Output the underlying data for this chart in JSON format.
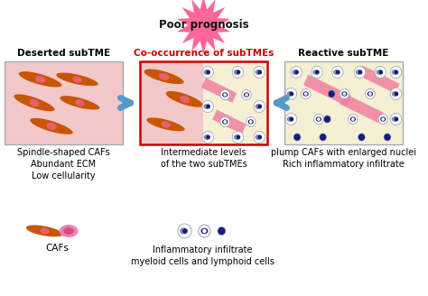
{
  "title": "Poor prognosis",
  "box1_title": "Deserted subTME",
  "box2_title": "Co-occurrence of subTMEs",
  "box3_title": "Reactive subTME",
  "box1_desc": "Spindle-shaped CAFs\nAbundant ECM\nLow cellularity",
  "box2_desc": "Intermediate levels\nof the two subTMEs",
  "box3_desc": "plump CAFs with enlarged nuclei\nRich inflammatory infiltrate",
  "legend1": "CAFs",
  "legend2": "Inflammatory infiltrate\nmyeloid cells and lymphoid cells",
  "bg_color": "#ffffff",
  "box1_bg": "#f2c8c8",
  "box2_left_bg": "#f2c8c8",
  "box2_right_bg": "#f5f0d5",
  "box3_bg": "#f5f0d5",
  "box1_border": "#aaaaaa",
  "box2_border": "#cc0000",
  "box3_border": "#aaaaaa",
  "title_bg": "#ff6699",
  "caf_body_color": "#c85500",
  "caf_nucleus_color": "#e86070",
  "pink_shape_color": "#f080a0",
  "cell_outer": "#a0a8b8",
  "cell_fill": "#ffffff",
  "cell_gray_nuc": "#8090a8",
  "cell_dark_nuc": "#1a1a80",
  "arrow_color": "#5599cc",
  "text_color": "#111111",
  "title_text_color": "#111111"
}
